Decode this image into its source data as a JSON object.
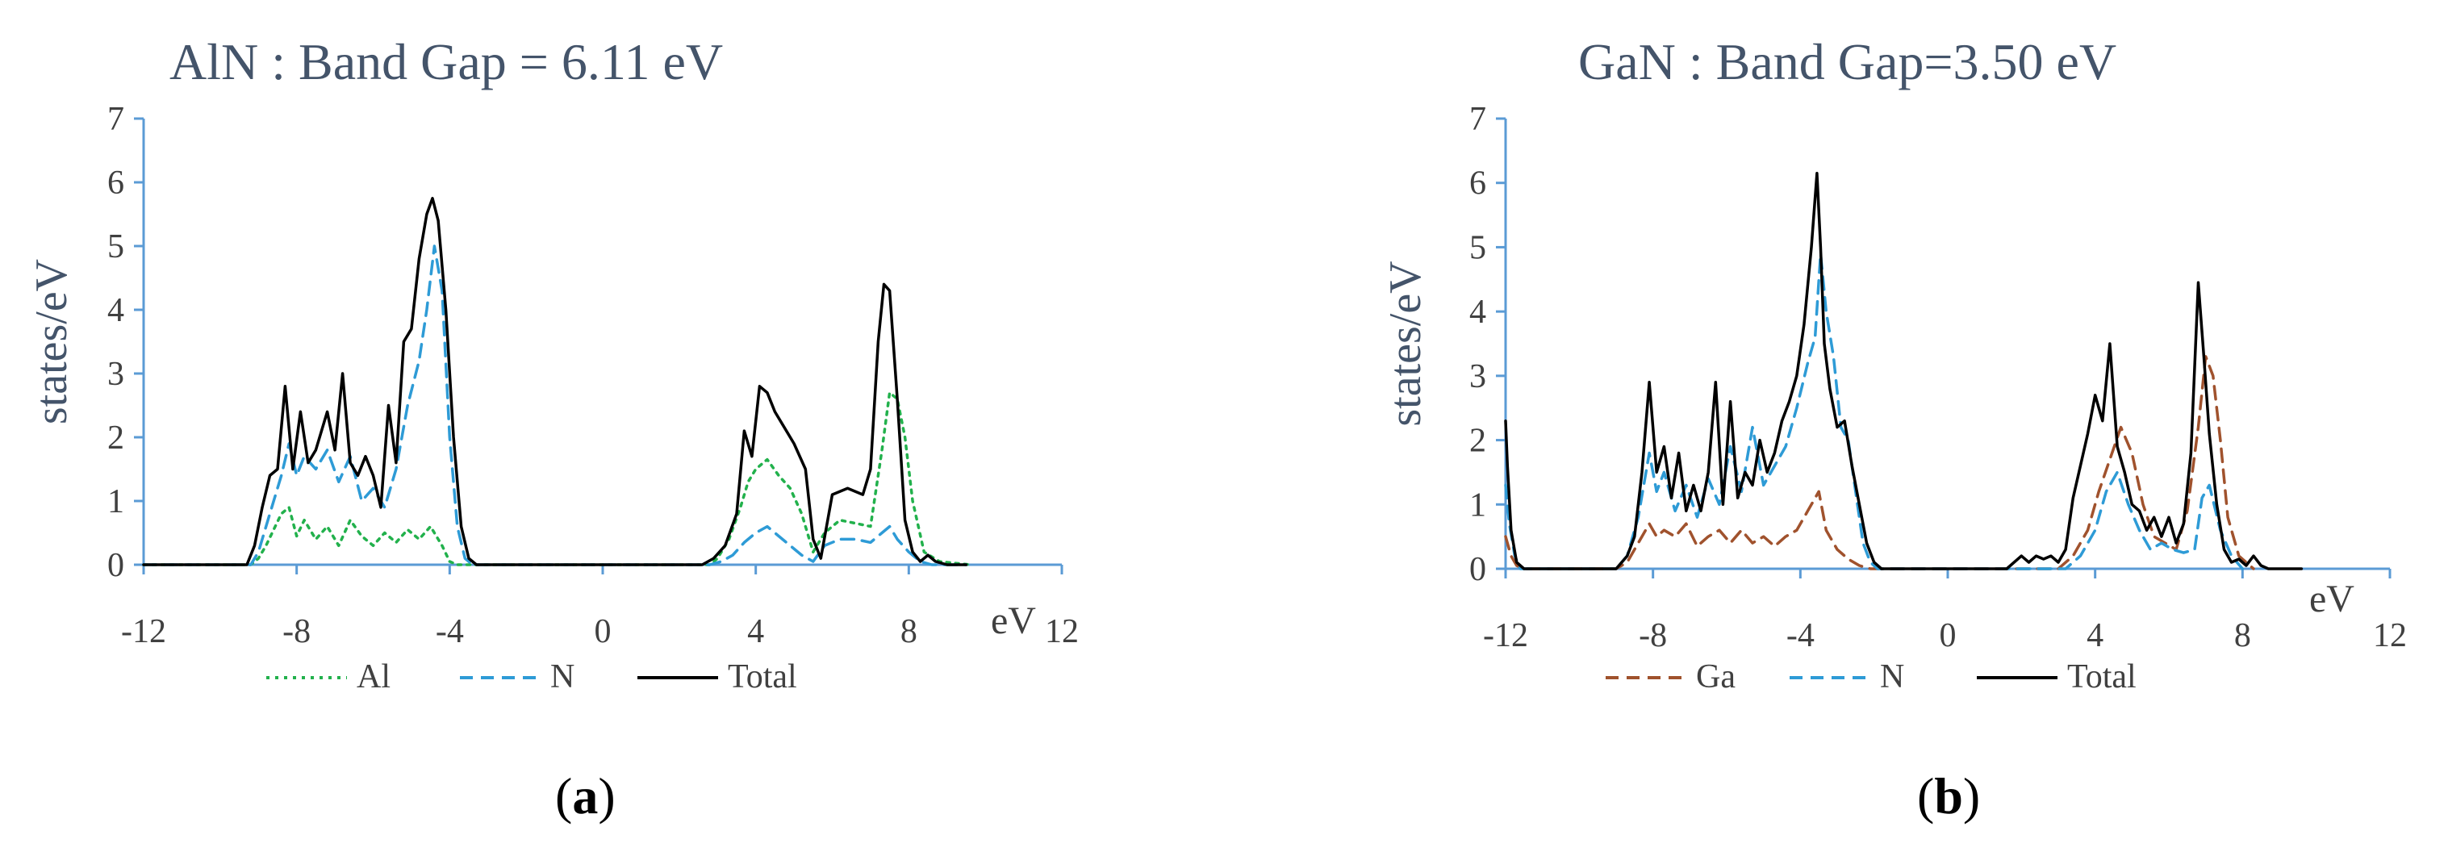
{
  "chart_data": [
    {
      "type": "line",
      "panel_label": "(a)",
      "title": "AlN : Band Gap = 6.11 eV",
      "ylabel": "states/eV",
      "xunit": "eV",
      "xlim": [
        -12,
        12
      ],
      "ylim": [
        0,
        7
      ],
      "xticks": [
        "-12",
        "-8",
        "-4",
        "0",
        "4",
        "8",
        "12"
      ],
      "yticks": [
        "0",
        "1",
        "2",
        "3",
        "4",
        "5",
        "6",
        "7"
      ],
      "legend_position": "bottom",
      "series": [
        {
          "name": "Al",
          "color": "#22b14c",
          "style": "dotted",
          "x": [
            -12,
            -9.2,
            -9,
            -8.8,
            -8.6,
            -8.4,
            -8.2,
            -8,
            -7.8,
            -7.5,
            -7.2,
            -6.9,
            -6.6,
            -6.3,
            -6,
            -5.7,
            -5.4,
            -5.1,
            -4.8,
            -4.5,
            -4.2,
            -4,
            -3.8,
            -3.5,
            2.8,
            3.0,
            3.3,
            3.6,
            3.8,
            4.0,
            4.3,
            4.6,
            4.9,
            5.2,
            5.5,
            5.8,
            6.2,
            6.6,
            7.0,
            7.3,
            7.5,
            7.7,
            7.9,
            8.1,
            8.4,
            8.8,
            9.6
          ],
          "y": [
            0,
            0,
            0.1,
            0.3,
            0.55,
            0.8,
            0.9,
            0.45,
            0.7,
            0.4,
            0.6,
            0.3,
            0.7,
            0.45,
            0.3,
            0.5,
            0.35,
            0.55,
            0.4,
            0.6,
            0.3,
            0.05,
            0,
            0,
            0,
            0.1,
            0.4,
            0.9,
            1.3,
            1.5,
            1.65,
            1.4,
            1.2,
            0.8,
            0.2,
            0.5,
            0.7,
            0.65,
            0.6,
            1.8,
            2.7,
            2.6,
            2.0,
            1.0,
            0.2,
            0.05,
            0
          ]
        },
        {
          "name": "N",
          "color": "#2e9bd6",
          "style": "dashed",
          "x": [
            -12,
            -9.2,
            -9,
            -8.8,
            -8.6,
            -8.4,
            -8.2,
            -8,
            -7.8,
            -7.5,
            -7.2,
            -6.9,
            -6.6,
            -6.3,
            -6,
            -5.7,
            -5.4,
            -5.1,
            -4.8,
            -4.6,
            -4.4,
            -4.2,
            -4,
            -3.8,
            -3.6,
            -3.4,
            2.8,
            3.1,
            3.4,
            3.7,
            4.0,
            4.3,
            4.6,
            4.9,
            5.2,
            5.5,
            5.8,
            6.2,
            6.6,
            7.0,
            7.3,
            7.5,
            7.7,
            8.0,
            8.3,
            8.6,
            9.5
          ],
          "y": [
            0,
            0,
            0.2,
            0.6,
            1.0,
            1.4,
            1.9,
            1.4,
            1.7,
            1.5,
            1.8,
            1.3,
            1.7,
            1.0,
            1.2,
            0.9,
            1.5,
            2.5,
            3.2,
            4.0,
            5.0,
            4.3,
            2.0,
            0.6,
            0.1,
            0,
            0,
            0.05,
            0.15,
            0.35,
            0.5,
            0.6,
            0.45,
            0.3,
            0.15,
            0.05,
            0.3,
            0.4,
            0.4,
            0.35,
            0.5,
            0.6,
            0.4,
            0.2,
            0.05,
            0,
            0
          ]
        },
        {
          "name": "Total",
          "color": "#000000",
          "style": "solid",
          "x": [
            -12,
            -9.3,
            -9.1,
            -8.9,
            -8.7,
            -8.5,
            -8.3,
            -8.1,
            -7.9,
            -7.7,
            -7.5,
            -7.2,
            -7.0,
            -6.8,
            -6.6,
            -6.4,
            -6.2,
            -6.0,
            -5.8,
            -5.6,
            -5.4,
            -5.2,
            -5.0,
            -4.8,
            -4.6,
            -4.45,
            -4.3,
            -4.1,
            -3.9,
            -3.7,
            -3.5,
            -3.3,
            2.6,
            2.9,
            3.2,
            3.5,
            3.7,
            3.9,
            4.1,
            4.3,
            4.5,
            4.7,
            5.0,
            5.3,
            5.5,
            5.7,
            6.0,
            6.4,
            6.8,
            7.0,
            7.2,
            7.35,
            7.5,
            7.7,
            7.9,
            8.1,
            8.3,
            8.5,
            8.7,
            9.0,
            9.5
          ],
          "y": [
            0,
            0,
            0.3,
            0.9,
            1.4,
            1.5,
            2.8,
            1.5,
            2.4,
            1.6,
            1.8,
            2.4,
            1.8,
            3.0,
            1.6,
            1.4,
            1.7,
            1.4,
            0.9,
            2.5,
            1.6,
            3.5,
            3.7,
            4.8,
            5.5,
            5.75,
            5.4,
            4.0,
            2.0,
            0.6,
            0.1,
            0,
            0,
            0.1,
            0.3,
            0.8,
            2.1,
            1.7,
            2.8,
            2.7,
            2.4,
            2.2,
            1.9,
            1.5,
            0.4,
            0.1,
            1.1,
            1.2,
            1.1,
            1.5,
            3.5,
            4.4,
            4.3,
            2.6,
            0.7,
            0.2,
            0.05,
            0.15,
            0.05,
            0,
            0
          ]
        }
      ]
    },
    {
      "type": "line",
      "panel_label": "(b)",
      "title": "GaN : Band Gap=3.50 eV",
      "ylabel": "states/eV",
      "xunit": "eV",
      "xlim": [
        -12,
        12
      ],
      "ylim": [
        0,
        7
      ],
      "xticks": [
        "-12",
        "-8",
        "-4",
        "0",
        "4",
        "8",
        "12"
      ],
      "yticks": [
        "0",
        "1",
        "2",
        "3",
        "4",
        "5",
        "6",
        "7"
      ],
      "legend_position": "bottom",
      "series": [
        {
          "name": "Ga",
          "color": "#a0522d",
          "style": "dashed",
          "x": [
            -12,
            -11.85,
            -11.7,
            -11.5,
            -9,
            -8.7,
            -8.4,
            -8.1,
            -7.9,
            -7.7,
            -7.4,
            -7.1,
            -6.8,
            -6.5,
            -6.2,
            -5.9,
            -5.6,
            -5.3,
            -5.0,
            -4.7,
            -4.4,
            -4.1,
            -3.8,
            -3.5,
            -3.3,
            -3.0,
            -2.7,
            -2.4,
            -2.1,
            -1.8,
            3.0,
            3.4,
            3.8,
            4.1,
            4.4,
            4.7,
            5.0,
            5.3,
            5.6,
            5.9,
            6.2,
            6.5,
            6.8,
            7.0,
            7.2,
            7.4,
            7.6,
            7.9,
            8.3
          ],
          "y": [
            0.5,
            0.2,
            0.05,
            0,
            0,
            0.1,
            0.4,
            0.7,
            0.5,
            0.6,
            0.5,
            0.7,
            0.35,
            0.5,
            0.6,
            0.4,
            0.6,
            0.4,
            0.5,
            0.35,
            0.5,
            0.6,
            0.9,
            1.2,
            0.6,
            0.3,
            0.15,
            0.05,
            0,
            0,
            0,
            0.2,
            0.6,
            1.2,
            1.7,
            2.2,
            1.8,
            1.0,
            0.5,
            0.4,
            0.3,
            0.9,
            2.2,
            3.3,
            3.0,
            2.0,
            0.8,
            0.2,
            0
          ]
        },
        {
          "name": "N",
          "color": "#2e9bd6",
          "style": "dashed",
          "x": [
            -12,
            -11.9,
            -11.75,
            -11.6,
            -9,
            -8.7,
            -8.4,
            -8.1,
            -7.9,
            -7.7,
            -7.4,
            -7.1,
            -6.8,
            -6.5,
            -6.2,
            -5.9,
            -5.6,
            -5.3,
            -5.0,
            -4.7,
            -4.4,
            -4.1,
            -3.8,
            -3.6,
            -3.45,
            -3.3,
            -3.1,
            -2.9,
            -2.7,
            -2.5,
            -2.3,
            -2.1,
            -1.9,
            3.2,
            3.6,
            4.0,
            4.3,
            4.6,
            4.9,
            5.2,
            5.5,
            5.8,
            6.1,
            6.4,
            6.7,
            6.9,
            7.1,
            7.4,
            7.7,
            8.0
          ],
          "y": [
            1.3,
            0.7,
            0.2,
            0,
            0,
            0.2,
            0.8,
            1.8,
            1.2,
            1.5,
            0.9,
            1.3,
            0.8,
            1.4,
            1.0,
            1.9,
            1.2,
            2.2,
            1.3,
            1.6,
            1.9,
            2.5,
            3.2,
            3.6,
            4.9,
            4.0,
            3.3,
            2.2,
            2.0,
            1.2,
            0.4,
            0.1,
            0,
            0,
            0.2,
            0.6,
            1.2,
            1.5,
            1.0,
            0.6,
            0.3,
            0.4,
            0.3,
            0.25,
            0.3,
            1.1,
            1.3,
            0.6,
            0.2,
            0
          ]
        },
        {
          "name": "Total",
          "color": "#000000",
          "style": "solid",
          "x": [
            -12,
            -11.95,
            -11.85,
            -11.7,
            -11.5,
            -9.0,
            -8.7,
            -8.5,
            -8.3,
            -8.1,
            -7.9,
            -7.7,
            -7.5,
            -7.3,
            -7.1,
            -6.9,
            -6.7,
            -6.5,
            -6.3,
            -6.1,
            -5.9,
            -5.7,
            -5.5,
            -5.3,
            -5.1,
            -4.9,
            -4.7,
            -4.5,
            -4.3,
            -4.1,
            -3.9,
            -3.7,
            -3.55,
            -3.45,
            -3.35,
            -3.2,
            -3.0,
            -2.8,
            -2.6,
            -2.4,
            -2.2,
            -2.0,
            -1.8,
            -1.6,
            1.6,
            2.0,
            2.2,
            2.4,
            2.6,
            2.8,
            3.0,
            3.2,
            3.4,
            3.6,
            3.8,
            4.0,
            4.2,
            4.4,
            4.6,
            4.8,
            5.0,
            5.2,
            5.4,
            5.6,
            5.8,
            6.0,
            6.2,
            6.4,
            6.6,
            6.8,
            6.95,
            7.1,
            7.3,
            7.5,
            7.7,
            7.9,
            8.1,
            8.3,
            8.5,
            8.7,
            8.9,
            9.2,
            9.6
          ],
          "y": [
            2.3,
            1.6,
            0.6,
            0.1,
            0,
            0,
            0.2,
            0.5,
            1.5,
            2.9,
            1.5,
            1.9,
            1.1,
            1.8,
            0.9,
            1.3,
            0.9,
            1.5,
            2.9,
            1.0,
            2.6,
            1.1,
            1.5,
            1.3,
            2.0,
            1.5,
            1.8,
            2.3,
            2.6,
            3.0,
            3.8,
            5.0,
            6.15,
            5.0,
            3.5,
            2.8,
            2.2,
            2.3,
            1.6,
            1.0,
            0.4,
            0.1,
            0,
            0,
            0,
            0.2,
            0.1,
            0.2,
            0.15,
            0.2,
            0.1,
            0.3,
            1.1,
            1.6,
            2.1,
            2.7,
            2.3,
            3.5,
            1.9,
            1.5,
            1.0,
            0.9,
            0.6,
            0.8,
            0.5,
            0.8,
            0.4,
            0.7,
            1.8,
            4.45,
            3.3,
            2.1,
            1.0,
            0.3,
            0.1,
            0.15,
            0.05,
            0.2,
            0.05,
            0,
            0,
            0,
            0
          ]
        }
      ]
    }
  ]
}
